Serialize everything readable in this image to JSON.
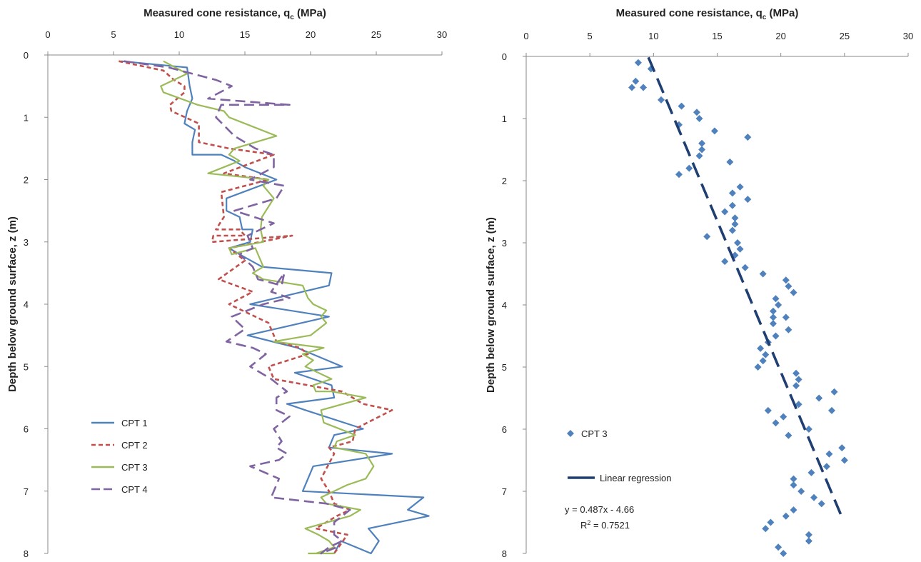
{
  "chart_data": [
    {
      "type": "line",
      "xlabel": "Measured cone resistance, q",
      "xlabel_sub": "c",
      "xlabel_unit": " (MPa)",
      "ylabel": "Depth below ground surface, z (m)",
      "xlim": [
        0,
        30
      ],
      "ylim": [
        0,
        8
      ],
      "x_ticks": [
        "0",
        "5",
        "10",
        "15",
        "20",
        "25",
        "30"
      ],
      "y_ticks": [
        "0",
        "1",
        "2",
        "3",
        "4",
        "5",
        "6",
        "7",
        "8"
      ],
      "y_inverted": true,
      "x_axis_position": "top",
      "legend_position": "bottom-left",
      "series": [
        {
          "name": "CPT 1",
          "color": "#4F81BD",
          "dash": "solid",
          "qc": [
            5.6,
            10.6,
            10.8,
            11,
            10.6,
            10.4,
            11.2,
            11,
            11,
            13.2,
            14.2,
            15,
            17.4,
            13.6,
            13.6,
            14.6,
            14.8,
            15.6,
            15.4,
            13.8,
            14.6,
            16.3,
            21.6,
            21.4,
            15.4,
            21.4,
            15.2,
            19,
            22.4,
            18.8,
            21.6,
            21.8,
            18.2,
            19.6,
            24,
            21.8,
            21.4,
            26.2,
            20.2,
            19.4,
            28.6,
            27.4,
            29,
            24.4,
            25.2,
            24.6,
            22.3,
            21.8
          ],
          "z": [
            0.1,
            0.2,
            0.5,
            0.7,
            0.9,
            1.1,
            1.2,
            1.4,
            1.6,
            1.6,
            1.7,
            1.8,
            2,
            2.3,
            2.5,
            2.6,
            2.8,
            2.8,
            3,
            3.1,
            3.2,
            3.4,
            3.5,
            3.7,
            4,
            4.2,
            4.5,
            4.7,
            5,
            5.1,
            5.3,
            5.5,
            5.6,
            5.7,
            6,
            6.1,
            6.3,
            6.4,
            6.6,
            7,
            7.1,
            7.3,
            7.4,
            7.6,
            7.8,
            8,
            7.8,
            8
          ]
        },
        {
          "name": "CPT 2",
          "color": "#C0504D",
          "dash": "6,4",
          "qc": [
            5.4,
            8.8,
            9.6,
            10.4,
            10.4,
            9.3,
            9.4,
            11.5,
            11.5,
            13.8,
            17.2,
            13.4,
            16.8,
            13.2,
            13.4,
            12.8,
            14.6,
            15,
            12.6,
            12.5,
            18.6,
            13.8,
            15,
            13,
            15.6,
            13.8,
            16.8,
            17.4,
            19.2,
            19.8,
            16.8,
            17.2,
            22.4,
            24,
            26.2,
            23.4,
            23.2,
            21.4,
            21.8,
            20.8,
            21.4,
            21.8,
            23,
            22,
            20.4,
            22.8,
            21.8
          ],
          "z": [
            0.1,
            0.25,
            0.4,
            0.5,
            0.6,
            0.8,
            0.9,
            1.1,
            1.4,
            1.5,
            1.6,
            1.9,
            2,
            2.2,
            2.6,
            2.8,
            2.8,
            2.9,
            2.9,
            3,
            2.9,
            3.1,
            3.3,
            3.6,
            3.8,
            4,
            4.3,
            4.6,
            4.7,
            4.8,
            5,
            5.2,
            5.4,
            5.6,
            5.7,
            6,
            6.2,
            6.3,
            6.4,
            6.8,
            7,
            7.2,
            7.3,
            7.4,
            7.6,
            7.7,
            8
          ]
        },
        {
          "name": "CPT 3",
          "color": "#9BBB59",
          "dash": "solid",
          "qc": [
            8.8,
            10.6,
            8.6,
            8.8,
            11.4,
            13.4,
            13.8,
            17.4,
            14.2,
            13.8,
            14.6,
            12.2,
            16.8,
            16.4,
            17.2,
            16.3,
            16.2,
            16.4,
            13.8,
            14,
            15.8,
            16.4,
            15.6,
            16.4,
            19.4,
            19.8,
            20.2,
            21.2,
            20.8,
            21.2,
            20,
            17.2,
            21,
            19.4,
            20.2,
            19.6,
            21.6,
            20.2,
            20.4,
            21.6,
            24.2,
            20.8,
            21,
            23.4,
            22,
            21.8,
            24.2,
            24.8,
            24.2,
            22.8,
            21.8,
            20.8,
            21.2,
            23.8,
            23,
            19.6,
            20.6,
            21.4,
            21.8,
            20.4,
            21.8,
            19.8
          ],
          "z": [
            0.1,
            0.3,
            0.5,
            0.6,
            0.8,
            0.9,
            1,
            1.3,
            1.5,
            1.6,
            1.7,
            1.9,
            2,
            2.1,
            2.3,
            2.6,
            2.8,
            3,
            3.1,
            3.2,
            3.1,
            3.4,
            3.5,
            3.6,
            3.7,
            3.9,
            4,
            4.1,
            4.2,
            4.3,
            4.5,
            4.6,
            4.7,
            4.8,
            4.9,
            5,
            5.2,
            5.3,
            5.4,
            5.4,
            5.5,
            5.7,
            5.9,
            6.1,
            6.2,
            6.3,
            6.4,
            6.6,
            6.8,
            6.9,
            7,
            7.1,
            7.2,
            7.3,
            7.4,
            7.6,
            7.7,
            7.8,
            7.9,
            8,
            8,
            8
          ]
        },
        {
          "name": "CPT 4",
          "color": "#8064A2",
          "dash": "14,7",
          "qc": [
            5.8,
            9.2,
            12.8,
            14,
            12.2,
            18.4,
            13.2,
            12.8,
            14.2,
            15.8,
            17.2,
            17.2,
            15.4,
            18,
            17.4,
            14.2,
            17.2,
            15.2,
            15.6,
            14.6,
            15.6,
            16,
            17.8,
            18,
            17,
            18.4,
            16.4,
            14,
            15,
            13.6,
            15.6,
            16.6,
            15.4,
            17,
            18.2,
            17.4,
            17.4,
            18.4,
            17.2,
            17.8,
            17.4,
            18.2,
            17.6,
            15.4,
            17.6,
            17.2,
            17,
            21.2,
            23,
            21.8,
            21.8,
            22.4,
            21.4,
            20.8,
            22
          ],
          "z": [
            0.1,
            0.2,
            0.4,
            0.5,
            0.7,
            0.8,
            0.8,
            1,
            1.3,
            1.5,
            1.6,
            1.8,
            2,
            2.1,
            2.3,
            2.5,
            2.7,
            2.9,
            3.1,
            3.2,
            3.4,
            3.6,
            3.7,
            3.5,
            3.8,
            3.9,
            4,
            4.2,
            4.4,
            4.6,
            4.7,
            4.8,
            5,
            5.2,
            5.4,
            5.5,
            5.7,
            5.8,
            6,
            6.2,
            6.3,
            6.4,
            6.5,
            6.6,
            6.8,
            7,
            7.1,
            7.2,
            7.3,
            7.5,
            7.7,
            7.8,
            7.9,
            8,
            7.9
          ]
        }
      ]
    },
    {
      "type": "scatter",
      "xlabel": "Measured cone resistance, q",
      "xlabel_sub": "c",
      "xlabel_unit": " (MPa)",
      "ylabel": "Depth below ground surface, z (m)",
      "xlim": [
        0,
        30
      ],
      "ylim": [
        0,
        8
      ],
      "x_ticks": [
        "0",
        "5",
        "10",
        "15",
        "20",
        "25",
        "30"
      ],
      "y_ticks": [
        "0",
        "1",
        "2",
        "3",
        "4",
        "5",
        "6",
        "7",
        "8"
      ],
      "y_inverted": true,
      "x_axis_position": "top",
      "legend_position": "bottom-left",
      "points": {
        "name": "CPT 3",
        "color": "#4F81BD",
        "qc": [
          8.8,
          9.8,
          8.6,
          9.2,
          8.3,
          10.6,
          12.2,
          13.4,
          13.6,
          12,
          14.8,
          13.8,
          17.4,
          13.8,
          13.6,
          16,
          12.8,
          12,
          16.8,
          16.2,
          17.4,
          16.2,
          15.6,
          16.4,
          16.4,
          16.2,
          14.2,
          16.6,
          16.8,
          16.4,
          15.6,
          17.2,
          18.6,
          20.4,
          20.6,
          21,
          19.6,
          19.8,
          19.4,
          19.4,
          20.4,
          19.4,
          20.6,
          19.6,
          19,
          18.4,
          18.8,
          18.6,
          18.2,
          21.2,
          21.4,
          21.2,
          24.2,
          23,
          21.4,
          19,
          24,
          20.2,
          19.6,
          20.6,
          22.2,
          24.8,
          23.8,
          25,
          23.6,
          22.4,
          21,
          21,
          21.6,
          22.6,
          23.2,
          20.4,
          21,
          19.2,
          18.8,
          22.2,
          22.2,
          19.8,
          20.2
        ],
        "z": [
          0.1,
          0.2,
          0.4,
          0.5,
          0.5,
          0.7,
          0.8,
          0.9,
          1,
          1.1,
          1.2,
          1.4,
          1.3,
          1.5,
          1.6,
          1.7,
          1.8,
          1.9,
          2.1,
          2.2,
          2.3,
          2.4,
          2.5,
          2.6,
          2.7,
          2.8,
          2.9,
          3,
          3.1,
          3.2,
          3.3,
          3.4,
          3.5,
          3.6,
          3.7,
          3.8,
          3.9,
          4,
          4.1,
          4.2,
          4.2,
          4.3,
          4.4,
          4.5,
          4.6,
          4.7,
          4.8,
          4.9,
          5,
          5.1,
          5.2,
          5.3,
          5.4,
          5.5,
          5.6,
          5.7,
          5.7,
          5.8,
          5.9,
          6.1,
          6,
          6.3,
          6.4,
          6.5,
          6.6,
          6.7,
          6.8,
          6.9,
          7,
          7.1,
          7.2,
          7.4,
          7.3,
          7.5,
          7.6,
          7.7,
          7.8,
          7.9,
          8
        ]
      },
      "regression": {
        "name": "Linear regression",
        "color": "#1F3F73",
        "slope": 0.487,
        "intercept": -4.66,
        "x_range": [
          9.6,
          24.9
        ],
        "equation": "y = 0.487x - 4.66",
        "r2_label": "R",
        "r2_sup": "2",
        "r2_value": " = 0.7521"
      }
    }
  ]
}
